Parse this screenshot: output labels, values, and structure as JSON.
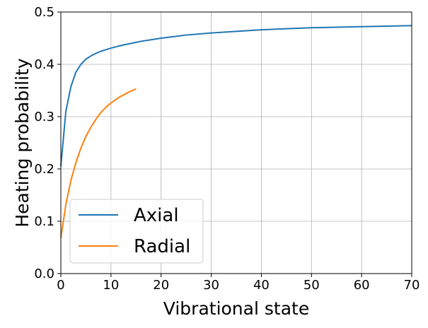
{
  "chart_data": {
    "type": "line",
    "title": "",
    "xlabel": "Vibrational state",
    "ylabel": "Heating probability",
    "xlim": [
      0,
      70
    ],
    "ylim": [
      0,
      0.5
    ],
    "xticks": [
      0,
      10,
      20,
      30,
      40,
      50,
      60,
      70
    ],
    "yticks": [
      0.0,
      0.1,
      0.2,
      0.3,
      0.4,
      0.5
    ],
    "xtick_labels": [
      "0",
      "10",
      "20",
      "30",
      "40",
      "50",
      "60",
      "70"
    ],
    "ytick_labels": [
      "0.0",
      "0.1",
      "0.2",
      "0.3",
      "0.4",
      "0.5"
    ],
    "grid": true,
    "legend_position": "lower-left",
    "series": [
      {
        "name": "Axial",
        "color": "#1f77b4",
        "x": [
          0,
          1,
          2,
          3,
          4,
          5,
          6,
          7,
          8,
          9,
          10,
          12,
          14,
          16,
          18,
          20,
          25,
          30,
          35,
          40,
          45,
          50,
          55,
          60,
          65,
          70
        ],
        "y": [
          0.205,
          0.31,
          0.357,
          0.385,
          0.4,
          0.41,
          0.416,
          0.421,
          0.425,
          0.428,
          0.431,
          0.436,
          0.44,
          0.444,
          0.447,
          0.45,
          0.456,
          0.46,
          0.463,
          0.466,
          0.468,
          0.47,
          0.471,
          0.472,
          0.473,
          0.474
        ]
      },
      {
        "name": "Radial",
        "color": "#ff7f0e",
        "x": [
          0,
          1,
          2,
          3,
          4,
          5,
          6,
          7,
          8,
          9,
          10,
          11,
          12,
          13,
          14,
          15
        ],
        "y": [
          0.068,
          0.132,
          0.178,
          0.212,
          0.24,
          0.262,
          0.28,
          0.295,
          0.308,
          0.318,
          0.326,
          0.333,
          0.339,
          0.344,
          0.349,
          0.353
        ]
      }
    ]
  }
}
